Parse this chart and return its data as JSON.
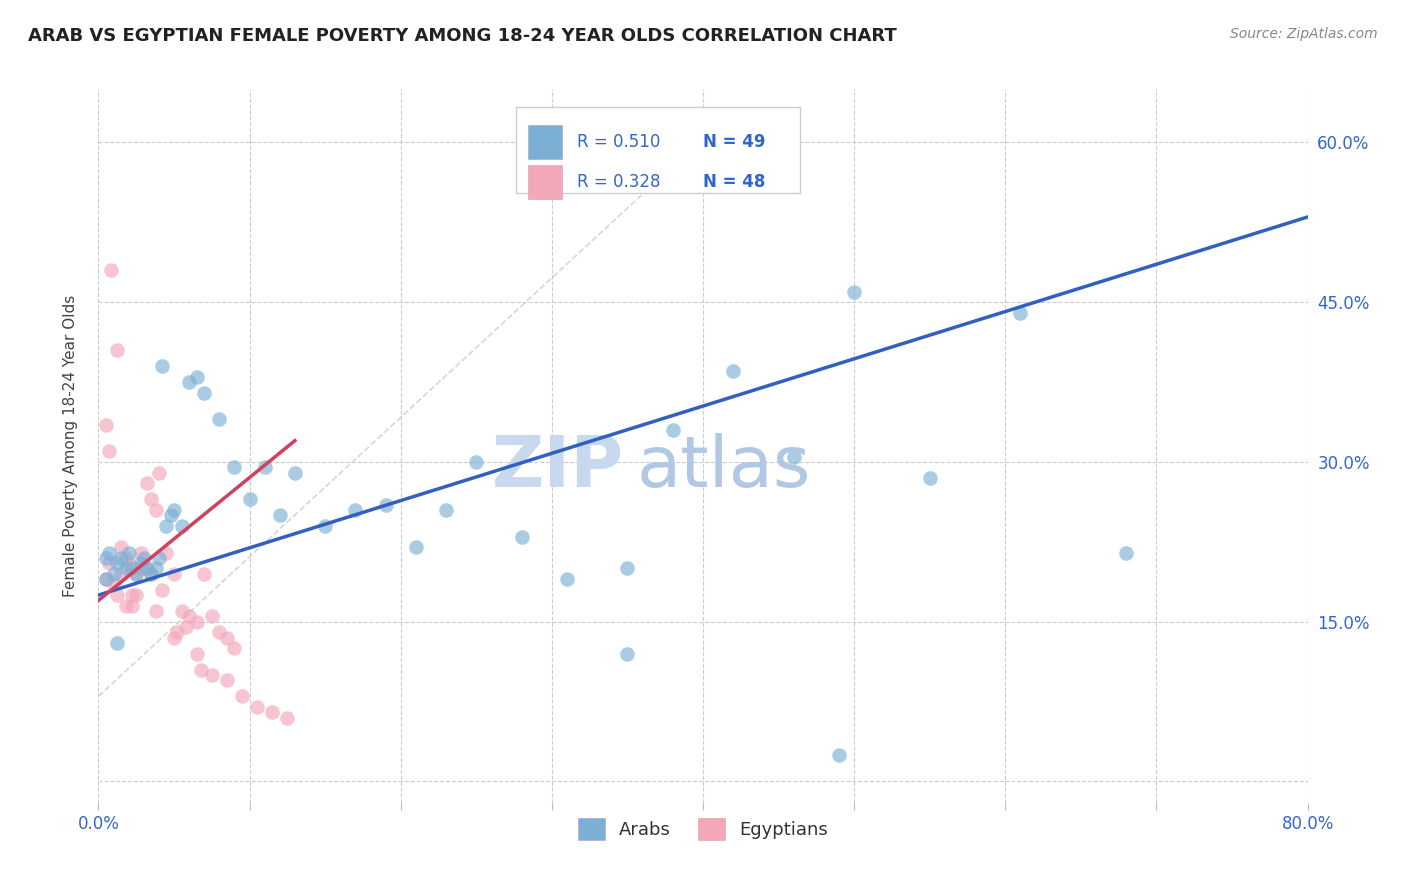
{
  "title": "ARAB VS EGYPTIAN FEMALE POVERTY AMONG 18-24 YEAR OLDS CORRELATION CHART",
  "source": "Source: ZipAtlas.com",
  "ylabel": "Female Poverty Among 18-24 Year Olds",
  "xlim": [
    0.0,
    0.8
  ],
  "ylim": [
    -0.02,
    0.65
  ],
  "arab_color": "#7bafd4",
  "egyptian_color": "#f4a7b9",
  "trend_arab_color": "#3060c0",
  "trend_egyptian_color": "#d04060",
  "diagonal_color": "#c8c8d8",
  "legend_R_arab": "0.510",
  "legend_N_arab": "49",
  "legend_R_egyptian": "0.328",
  "legend_N_egyptian": "48",
  "background_color": "#ffffff",
  "arab_x": [
    0.005,
    0.007,
    0.01,
    0.012,
    0.015,
    0.018,
    0.02,
    0.022,
    0.025,
    0.028,
    0.03,
    0.032,
    0.035,
    0.038,
    0.04,
    0.042,
    0.045,
    0.048,
    0.05,
    0.055,
    0.06,
    0.065,
    0.07,
    0.08,
    0.09,
    0.1,
    0.11,
    0.12,
    0.13,
    0.15,
    0.17,
    0.19,
    0.21,
    0.23,
    0.25,
    0.28,
    0.31,
    0.35,
    0.38,
    0.42,
    0.46,
    0.5,
    0.55,
    0.61,
    0.68,
    0.005,
    0.012,
    0.35,
    0.49
  ],
  "arab_y": [
    0.21,
    0.215,
    0.195,
    0.205,
    0.21,
    0.2,
    0.215,
    0.2,
    0.195,
    0.205,
    0.21,
    0.2,
    0.195,
    0.2,
    0.21,
    0.39,
    0.24,
    0.25,
    0.255,
    0.24,
    0.375,
    0.38,
    0.365,
    0.34,
    0.295,
    0.265,
    0.295,
    0.25,
    0.29,
    0.24,
    0.255,
    0.26,
    0.22,
    0.255,
    0.3,
    0.23,
    0.19,
    0.2,
    0.33,
    0.385,
    0.305,
    0.46,
    0.285,
    0.44,
    0.215,
    0.19,
    0.13,
    0.12,
    0.025
  ],
  "egyptian_x": [
    0.005,
    0.007,
    0.01,
    0.012,
    0.015,
    0.018,
    0.02,
    0.022,
    0.025,
    0.028,
    0.03,
    0.032,
    0.035,
    0.038,
    0.04,
    0.045,
    0.05,
    0.055,
    0.06,
    0.065,
    0.07,
    0.075,
    0.08,
    0.085,
    0.09,
    0.005,
    0.008,
    0.012,
    0.018,
    0.022,
    0.028,
    0.035,
    0.042,
    0.05,
    0.058,
    0.065,
    0.075,
    0.085,
    0.095,
    0.105,
    0.115,
    0.125,
    0.007,
    0.015,
    0.025,
    0.038,
    0.052,
    0.068
  ],
  "egyptian_y": [
    0.19,
    0.205,
    0.185,
    0.175,
    0.195,
    0.21,
    0.205,
    0.175,
    0.195,
    0.215,
    0.2,
    0.28,
    0.265,
    0.255,
    0.29,
    0.215,
    0.195,
    0.16,
    0.155,
    0.15,
    0.195,
    0.155,
    0.14,
    0.135,
    0.125,
    0.335,
    0.48,
    0.405,
    0.165,
    0.165,
    0.2,
    0.195,
    0.18,
    0.135,
    0.145,
    0.12,
    0.1,
    0.095,
    0.08,
    0.07,
    0.065,
    0.06,
    0.31,
    0.22,
    0.175,
    0.16,
    0.14,
    0.105
  ]
}
